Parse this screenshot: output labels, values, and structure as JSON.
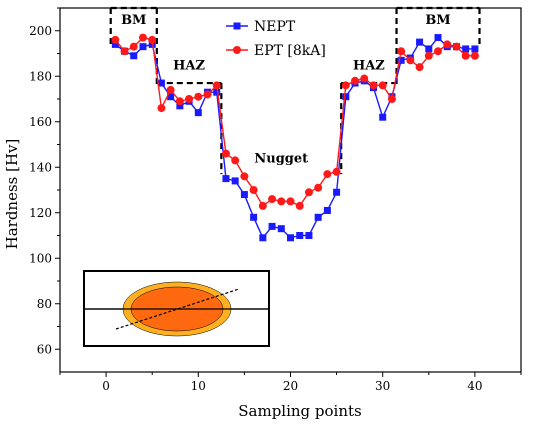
{
  "chart_data": {
    "type": "line",
    "title": "",
    "xlabel": "Sampling points",
    "ylabel": "Hardness [Hv]",
    "xlim": [
      -5,
      45
    ],
    "ylim": [
      50,
      210
    ],
    "xticks": [
      0,
      10,
      20,
      30,
      40
    ],
    "yticks": [
      60,
      80,
      100,
      120,
      140,
      160,
      180,
      200
    ],
    "legend_position": "top-center",
    "series": [
      {
        "name": "NEPT",
        "color": "#1a1aff",
        "marker": "square",
        "x": [
          1,
          2,
          3,
          4,
          5,
          6,
          7,
          8,
          9,
          10,
          11,
          12,
          13,
          14,
          15,
          16,
          17,
          18,
          19,
          20,
          21,
          22,
          23,
          24,
          25,
          26,
          27,
          28,
          29,
          30,
          31,
          32,
          33,
          34,
          35,
          36,
          37,
          38,
          39,
          40
        ],
        "y": [
          194,
          191,
          189,
          193,
          194,
          177,
          171,
          167,
          169,
          164,
          173,
          173,
          135,
          134,
          128,
          118,
          109,
          114,
          113,
          109,
          110,
          110,
          118,
          121,
          129,
          171,
          177,
          178,
          175,
          162,
          171,
          187,
          188,
          195,
          192,
          197,
          193,
          193,
          192,
          192
        ]
      },
      {
        "name": "EPT [8kA]",
        "color": "#ff1a1a",
        "marker": "circle",
        "x": [
          1,
          2,
          3,
          4,
          5,
          6,
          7,
          8,
          9,
          10,
          11,
          12,
          13,
          14,
          15,
          16,
          17,
          18,
          19,
          20,
          21,
          22,
          23,
          24,
          25,
          26,
          27,
          28,
          29,
          30,
          31,
          32,
          33,
          34,
          35,
          36,
          37,
          38,
          39,
          40
        ],
        "y": [
          196,
          191,
          193,
          197,
          196,
          166,
          174,
          169,
          170,
          171,
          172,
          176,
          146,
          143,
          136,
          130,
          123,
          126,
          125,
          125,
          123,
          129,
          131,
          137,
          138,
          176,
          178,
          179,
          176,
          176,
          170,
          191,
          187,
          184,
          189,
          191,
          194,
          193,
          189,
          189
        ]
      }
    ],
    "annotations": [
      {
        "text": "BM",
        "x": 3,
        "y": 203
      },
      {
        "text": "HAZ",
        "x": 9,
        "y": 183
      },
      {
        "text": "Nugget",
        "x": 19,
        "y": 142
      },
      {
        "text": "HAZ",
        "x": 28.5,
        "y": 183
      },
      {
        "text": "BM",
        "x": 36,
        "y": 203
      }
    ],
    "region_boundaries": [
      {
        "x": 0.5,
        "y_top": 210,
        "y_bottom": 194
      },
      {
        "x": 5.5,
        "y_top": 210,
        "y_bottom": 175
      },
      {
        "x": 12.5,
        "y_top": 177,
        "y_bottom": 137
      },
      {
        "x": 25.5,
        "y_top": 177,
        "y_bottom": 137
      },
      {
        "x": 31.5,
        "y_top": 210,
        "y_bottom": 175
      },
      {
        "x": 40.5,
        "y_top": 210,
        "y_bottom": 194
      }
    ],
    "region_horizontals": [
      {
        "x1": 0.5,
        "x2": 5.5,
        "y": 210
      },
      {
        "x1": 5.5,
        "x2": 12.5,
        "y": 177
      },
      {
        "x1": 25.5,
        "x2": 31.5,
        "y": 177
      },
      {
        "x1": 31.5,
        "x2": 40.5,
        "y": 210
      }
    ],
    "inset": {
      "description_icon": "weld-nugget-cross-section-icon",
      "outer_color": "#ffb020",
      "inner_color": "#ff6a10"
    }
  }
}
